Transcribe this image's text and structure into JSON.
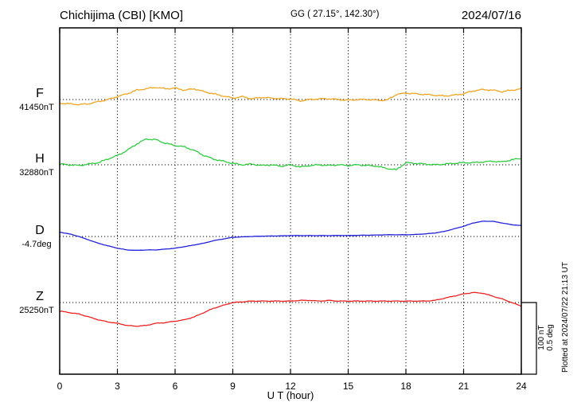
{
  "header": {
    "station": "Chichijima (CBI)  [KMO]",
    "coordinates": "GG ( 27.15°, 142.30°)",
    "date": "2024/07/16"
  },
  "scale_bar": {
    "labels": [
      "100 nT",
      "0.5 deg"
    ]
  },
  "footer": {
    "plotted_note": "Plotted at 2024/07/22 21:13 UT"
  },
  "chart_data": {
    "type": "line",
    "title": "Chichijima (CBI)  [KMO]",
    "date": "2024/07/16",
    "xlabel": "U T (hour)",
    "x_unit": "hour",
    "x_range": [
      0,
      24
    ],
    "x_step": 0.5,
    "x_ticks": [
      0,
      3,
      6,
      9,
      12,
      15,
      18,
      21,
      24
    ],
    "grid": "dotted vertical lines every 3 hours, dotted horizontal baseline per component",
    "legend_position": "left-of-axis component labels",
    "scale_bar_meaning": {
      "nT": 100,
      "deg": 0.5
    },
    "series": [
      {
        "name": "F",
        "unit": "nT",
        "baseline_label": "41450nT",
        "baseline_value": 41450,
        "color": "#f2a51e",
        "baseline_frac": 0.2069,
        "description": "offset from baseline in nT, sampled every 0.5 h",
        "values": [
          -5,
          -6,
          -7,
          -6,
          -3,
          0,
          4,
          8,
          13,
          15,
          17,
          15,
          16,
          13,
          15,
          11,
          8,
          5,
          2,
          4,
          1,
          3,
          2,
          1,
          1,
          -2,
          0,
          1,
          1,
          0,
          -1,
          0,
          0,
          -1,
          -1,
          7,
          9,
          8,
          7,
          6,
          5,
          6,
          8,
          12,
          14,
          13,
          11,
          13,
          15
        ]
      },
      {
        "name": "H",
        "unit": "nT",
        "baseline_label": "32880nT",
        "baseline_value": 32880,
        "color": "#2ecc40",
        "baseline_frac": 0.3954,
        "description": "offset from baseline in nT, sampled every 0.5 h",
        "values": [
          1,
          0,
          -1,
          1,
          3,
          8,
          13,
          20,
          29,
          36,
          35,
          30,
          27,
          25,
          20,
          13,
          8,
          5,
          2,
          0,
          1,
          -1,
          0,
          -2,
          0,
          -3,
          -1,
          0,
          -1,
          0,
          -1,
          0,
          -1,
          -2,
          -5,
          -7,
          3,
          2,
          1,
          0,
          1,
          2,
          3,
          3,
          4,
          5,
          4,
          7,
          9
        ]
      },
      {
        "name": "D",
        "unit": "deg",
        "baseline_label": "-4.7deg",
        "baseline_value": -4.7,
        "color": "#2222dd",
        "baseline_frac": 0.6023,
        "description": "offset from baseline in degrees, sampled every 0.5 h",
        "values": [
          0.03,
          0.018,
          0.0,
          -0.024,
          -0.047,
          -0.065,
          -0.082,
          -0.094,
          -0.097,
          -0.094,
          -0.094,
          -0.088,
          -0.082,
          -0.071,
          -0.059,
          -0.047,
          -0.029,
          -0.018,
          -0.006,
          -0.003,
          0.0,
          0.002,
          0.003,
          0.004,
          0.006,
          0.006,
          0.006,
          0.006,
          0.006,
          0.007,
          0.006,
          0.008,
          0.009,
          0.01,
          0.012,
          0.012,
          0.012,
          0.014,
          0.018,
          0.024,
          0.035,
          0.053,
          0.071,
          0.094,
          0.106,
          0.106,
          0.094,
          0.082,
          0.076
        ]
      },
      {
        "name": "Z",
        "unit": "nT",
        "baseline_label": "25250nT",
        "baseline_value": 25250,
        "color": "#ee2222",
        "baseline_frac": 0.7931,
        "description": "offset from baseline in nT, sampled every 0.5 h",
        "values": [
          -12,
          -14,
          -16,
          -20,
          -24,
          -27,
          -29,
          -32,
          -33,
          -32,
          -29,
          -28,
          -26,
          -24,
          -20,
          -14,
          -8,
          -4,
          0,
          1,
          2,
          2,
          2,
          2,
          2,
          3,
          3,
          2,
          3,
          2,
          2,
          2,
          2,
          2,
          2,
          2,
          2,
          2,
          2,
          3,
          6,
          9,
          12,
          14,
          13,
          9,
          5,
          0,
          -5
        ]
      }
    ]
  }
}
